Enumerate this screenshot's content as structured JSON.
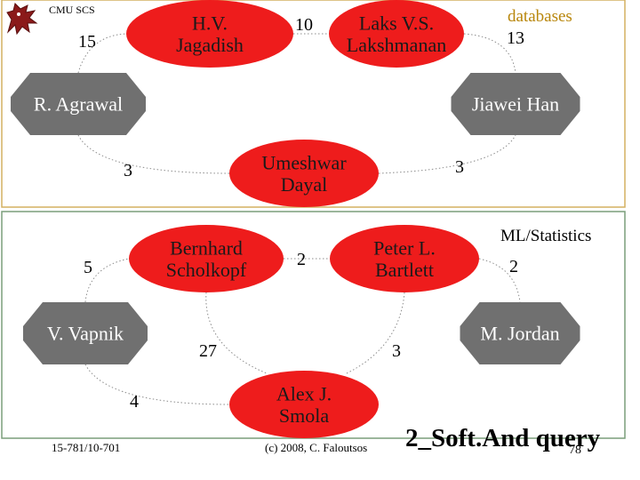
{
  "header": {
    "label": "CMU SCS"
  },
  "panels": [
    {
      "id": "top",
      "label": "databases",
      "label_color": "#b8860b",
      "border_color": "#d4b060",
      "nodes": [
        {
          "id": "jagadish",
          "lines": [
            "H.V.",
            "Jagadish"
          ],
          "shape": "ellipse",
          "color": "#ee1c1c"
        },
        {
          "id": "lakshmanan",
          "lines": [
            "Laks V.S.",
            "Lakshmanan"
          ],
          "shape": "ellipse",
          "color": "#ee1c1c"
        },
        {
          "id": "agrawal",
          "lines": [
            "R. Agrawal"
          ],
          "shape": "octagon",
          "color": "#707070"
        },
        {
          "id": "han",
          "lines": [
            "Jiawei Han"
          ],
          "shape": "octagon",
          "color": "#707070"
        },
        {
          "id": "dayal",
          "lines": [
            "Umeshwar",
            "Dayal"
          ],
          "shape": "ellipse",
          "color": "#ee1c1c"
        }
      ],
      "edges": [
        {
          "id": "e-jl",
          "weight": "10"
        },
        {
          "id": "e-aj",
          "weight": "15"
        },
        {
          "id": "e-lh",
          "weight": "13"
        },
        {
          "id": "e-ad",
          "weight": "3"
        },
        {
          "id": "e-dh",
          "weight": "3"
        }
      ]
    },
    {
      "id": "bottom",
      "label": "ML/Statistics",
      "label_color": "#000000",
      "border_color": "#7a9e7a",
      "nodes": [
        {
          "id": "scholkopf",
          "lines": [
            "Bernhard",
            "Scholkopf"
          ],
          "shape": "ellipse",
          "color": "#ee1c1c"
        },
        {
          "id": "bartlett",
          "lines": [
            "Peter L.",
            "Bartlett"
          ],
          "shape": "ellipse",
          "color": "#ee1c1c"
        },
        {
          "id": "vapnik",
          "lines": [
            "V. Vapnik"
          ],
          "shape": "octagon",
          "color": "#707070"
        },
        {
          "id": "jordan",
          "lines": [
            "M. Jordan"
          ],
          "shape": "octagon",
          "color": "#707070"
        },
        {
          "id": "smola",
          "lines": [
            "Alex J.",
            "Smola"
          ],
          "shape": "ellipse",
          "color": "#ee1c1c"
        }
      ],
      "edges": [
        {
          "id": "e-sb",
          "weight": "2"
        },
        {
          "id": "e-vs",
          "weight": "5"
        },
        {
          "id": "e-bj",
          "weight": "2"
        },
        {
          "id": "e-vsm",
          "weight": "4"
        },
        {
          "id": "e-ssm",
          "weight": "27"
        },
        {
          "id": "e-bsm",
          "weight": "3"
        }
      ]
    }
  ],
  "footer": {
    "left": "15-781/10-701",
    "center": "(c) 2008, C. Faloutsos",
    "title": "2_Soft.And query",
    "page": "78"
  }
}
